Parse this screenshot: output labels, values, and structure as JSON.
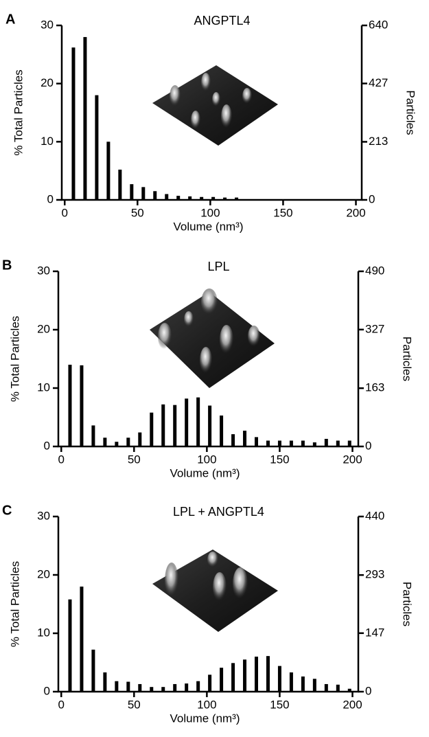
{
  "chart_data": [
    {
      "type": "bar",
      "panel_label": "A",
      "title": "ANGPTL4",
      "xlabel": "Volume (nm³)",
      "ylabel": "% Total Particles",
      "y2label": "Particles",
      "color": "#000000",
      "x": [
        6,
        14,
        22,
        30,
        38,
        46,
        54,
        62,
        70,
        78,
        86,
        94,
        102,
        110,
        118
      ],
      "values": [
        26.2,
        28.0,
        18.0,
        10.0,
        5.2,
        2.7,
        2.2,
        1.5,
        1.0,
        0.7,
        0.6,
        0.5,
        0.5,
        0.4,
        0.4
      ],
      "xlim": [
        -2,
        204
      ],
      "xticks": [
        0,
        50,
        100,
        150,
        200
      ],
      "ylim": [
        0,
        30
      ],
      "yticks": [
        0,
        10,
        20,
        30
      ],
      "y2lim": [
        0,
        640
      ],
      "y2ticks": [
        0,
        213,
        427,
        640
      ]
    },
    {
      "type": "bar",
      "panel_label": "B",
      "title": "LPL",
      "xlabel": "Volume (nm³)",
      "ylabel": "% Total Particles",
      "y2label": "Particles",
      "color": "#000000",
      "x": [
        6,
        14,
        22,
        30,
        38,
        46,
        54,
        62,
        70,
        78,
        86,
        94,
        102,
        110,
        118,
        126,
        134,
        142,
        150,
        158,
        166,
        174,
        182,
        190,
        198
      ],
      "values": [
        14.0,
        13.9,
        3.6,
        1.5,
        0.8,
        1.5,
        2.4,
        5.8,
        7.2,
        7.1,
        8.2,
        8.4,
        7.0,
        5.3,
        2.1,
        2.7,
        1.6,
        1.0,
        1.0,
        1.0,
        1.0,
        0.7,
        1.3,
        1.0,
        1.0
      ],
      "xlim": [
        -2,
        204
      ],
      "xticks": [
        0,
        50,
        100,
        150,
        200
      ],
      "ylim": [
        0,
        30
      ],
      "yticks": [
        0,
        10,
        20,
        30
      ],
      "y2lim": [
        0,
        490
      ],
      "y2ticks": [
        0,
        163,
        327,
        490
      ]
    },
    {
      "type": "bar",
      "panel_label": "C",
      "title": "LPL + ANGPTL4",
      "xlabel": "Volume (nm³)",
      "ylabel": "% Total Particles",
      "y2label": "Particles",
      "color": "#000000",
      "x": [
        6,
        14,
        22,
        30,
        38,
        46,
        54,
        62,
        70,
        78,
        86,
        94,
        102,
        110,
        118,
        126,
        134,
        142,
        150,
        158,
        166,
        174,
        182,
        190,
        198
      ],
      "values": [
        15.8,
        18.0,
        7.2,
        3.3,
        1.8,
        1.7,
        1.3,
        0.8,
        0.8,
        1.3,
        1.4,
        1.8,
        2.9,
        4.1,
        4.9,
        5.5,
        6.0,
        6.1,
        4.4,
        3.3,
        2.6,
        2.2,
        1.3,
        1.2,
        0.5
      ],
      "xlim": [
        -2,
        204
      ],
      "xticks": [
        0,
        50,
        100,
        150,
        200
      ],
      "ylim": [
        0,
        30
      ],
      "yticks": [
        0,
        10,
        20,
        30
      ],
      "y2lim": [
        0,
        440
      ],
      "y2ticks": [
        0,
        147,
        293,
        440
      ]
    }
  ]
}
